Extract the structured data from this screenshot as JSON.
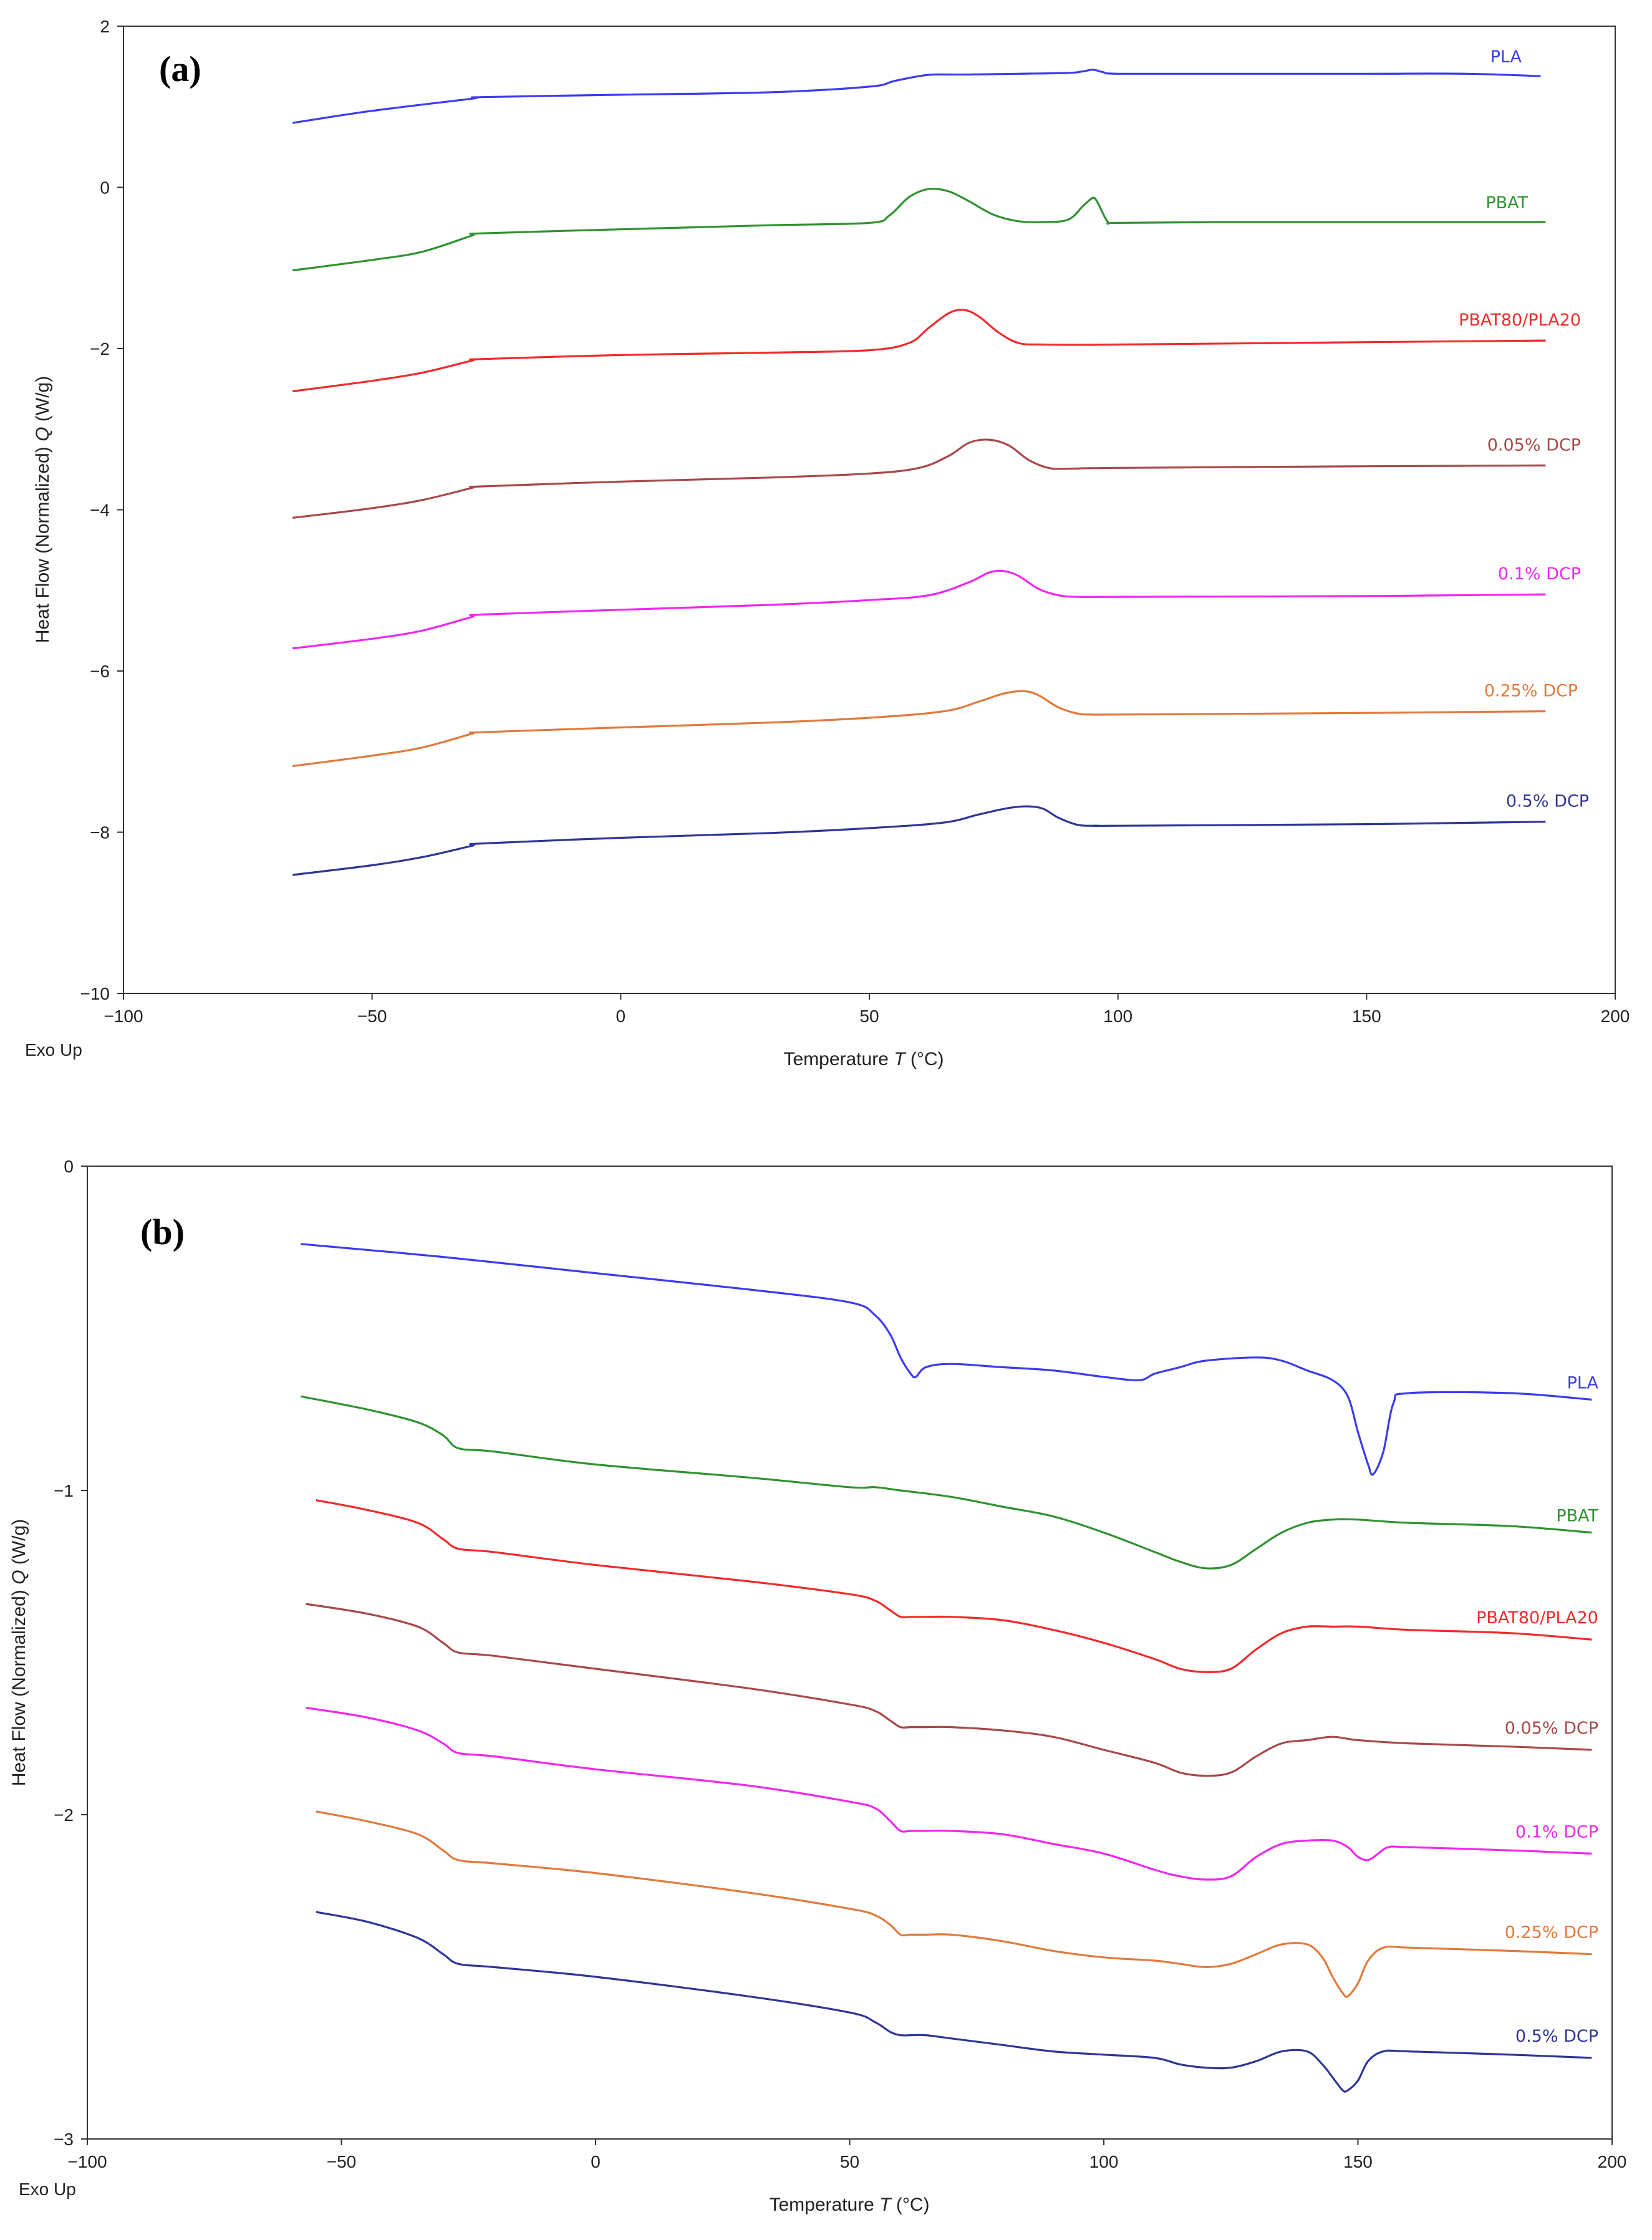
{
  "colors": {
    "PLA": "#3b3bf0",
    "PBAT": "#2f922f",
    "PBAT80/PLA20": "#f02a2a",
    "0.05% DCP": "#a94848",
    "0.1% DCP": "#f026f0",
    "0.25% DCP": "#e07a3c",
    "0.5% DCP": "#2e3597"
  },
  "chart_data": [
    {
      "type": "line",
      "panel_label": "(a)",
      "title": "",
      "xlabel": "Temperature",
      "xlabel_symbol": "T",
      "xlabel_unit": "(°C)",
      "ylabel": "Heat Flow (Normalized)",
      "ylabel_symbol": "Q",
      "ylabel_unit": "(W/g)",
      "corner_note": "Exo Up",
      "xlim": [
        -100,
        200
      ],
      "ylim": [
        -10,
        2
      ],
      "xticks": [
        -100,
        -50,
        0,
        50,
        100,
        150,
        200
      ],
      "xtick_labels": [
        "−100",
        "−50",
        "0",
        "50",
        "100",
        "150",
        "200"
      ],
      "yticks": [
        -10,
        -8,
        -6,
        -4,
        -2,
        0,
        2
      ],
      "ytick_labels": [
        "−10",
        "−8",
        "−6",
        "−4",
        "−2",
        "0",
        "2"
      ],
      "grid": false,
      "series": [
        {
          "name": "PLA",
          "label": "PLA",
          "x": [
            -66,
            -50,
            -30,
            -28,
            0,
            30,
            50,
            55,
            60,
            63,
            70,
            80,
            90,
            93,
            95,
            97,
            100,
            120,
            150,
            170,
            185
          ],
          "y": [
            0.8,
            0.95,
            1.1,
            1.12,
            1.15,
            1.18,
            1.25,
            1.32,
            1.38,
            1.4,
            1.4,
            1.41,
            1.42,
            1.44,
            1.46,
            1.43,
            1.41,
            1.41,
            1.41,
            1.41,
            1.38
          ]
        },
        {
          "name": "PBAT",
          "label": "PBAT",
          "x": [
            -66,
            -50,
            -40,
            -30,
            -28,
            0,
            30,
            50,
            54,
            58,
            62,
            66,
            70,
            75,
            80,
            85,
            90,
            93,
            95,
            96,
            98,
            100,
            120,
            150,
            186
          ],
          "y": [
            -1.03,
            -0.9,
            -0.8,
            -0.6,
            -0.57,
            -0.52,
            -0.47,
            -0.44,
            -0.35,
            -0.12,
            -0.02,
            -0.05,
            -0.17,
            -0.34,
            -0.42,
            -0.43,
            -0.4,
            -0.23,
            -0.13,
            -0.2,
            -0.43,
            -0.44,
            -0.43,
            -0.43,
            -0.43
          ]
        },
        {
          "name": "PBAT80/PLA20",
          "label": "PBAT80/PLA20",
          "x": [
            -66,
            -50,
            -40,
            -30,
            -28,
            0,
            30,
            50,
            58,
            62,
            66,
            69,
            72,
            76,
            80,
            85,
            100,
            150,
            186
          ],
          "y": [
            -2.53,
            -2.4,
            -2.3,
            -2.15,
            -2.13,
            -2.08,
            -2.05,
            -2.02,
            -1.93,
            -1.74,
            -1.56,
            -1.52,
            -1.6,
            -1.8,
            -1.93,
            -1.95,
            -1.95,
            -1.92,
            -1.9
          ]
        },
        {
          "name": "0.05% DCP",
          "label": "0.05% DCP",
          "x": [
            -66,
            -50,
            -40,
            -30,
            -28,
            0,
            30,
            50,
            60,
            66,
            70,
            74,
            78,
            82,
            86,
            90,
            100,
            150,
            186
          ],
          "y": [
            -4.1,
            -3.98,
            -3.88,
            -3.73,
            -3.71,
            -3.65,
            -3.6,
            -3.55,
            -3.48,
            -3.33,
            -3.17,
            -3.13,
            -3.2,
            -3.38,
            -3.48,
            -3.49,
            -3.48,
            -3.46,
            -3.45
          ]
        },
        {
          "name": "0.1% DCP",
          "label": "0.1% DCP",
          "x": [
            -66,
            -50,
            -40,
            -30,
            -28,
            0,
            30,
            50,
            62,
            70,
            74,
            77,
            80,
            84,
            88,
            92,
            100,
            150,
            186
          ],
          "y": [
            -5.72,
            -5.6,
            -5.5,
            -5.33,
            -5.3,
            -5.24,
            -5.18,
            -5.12,
            -5.06,
            -4.9,
            -4.78,
            -4.76,
            -4.82,
            -4.98,
            -5.06,
            -5.08,
            -5.08,
            -5.07,
            -5.05
          ]
        },
        {
          "name": "0.25% DCP",
          "label": "0.25% DCP",
          "x": [
            -66,
            -50,
            -40,
            -30,
            -28,
            0,
            30,
            50,
            65,
            72,
            77,
            81,
            84,
            88,
            92,
            95,
            100,
            150,
            186
          ],
          "y": [
            -7.18,
            -7.05,
            -6.95,
            -6.78,
            -6.76,
            -6.7,
            -6.64,
            -6.58,
            -6.5,
            -6.38,
            -6.28,
            -6.25,
            -6.3,
            -6.45,
            -6.53,
            -6.54,
            -6.54,
            -6.52,
            -6.5
          ]
        },
        {
          "name": "0.5% DCP",
          "label": "0.5% DCP",
          "x": [
            -66,
            -50,
            -40,
            -30,
            -28,
            0,
            30,
            50,
            65,
            72,
            78,
            82,
            85,
            88,
            92,
            96,
            100,
            150,
            186
          ],
          "y": [
            -8.53,
            -8.41,
            -8.31,
            -8.17,
            -8.14,
            -8.07,
            -8.01,
            -7.95,
            -7.88,
            -7.78,
            -7.7,
            -7.68,
            -7.71,
            -7.82,
            -7.91,
            -7.92,
            -7.92,
            -7.9,
            -7.87
          ]
        }
      ]
    },
    {
      "type": "line",
      "panel_label": "(b)",
      "title": "",
      "xlabel": "Temperature",
      "xlabel_symbol": "T",
      "xlabel_unit": "(°C)",
      "ylabel": "Heat Flow (Normalized)",
      "ylabel_symbol": "Q",
      "ylabel_unit": "(W/g)",
      "corner_note": "Exo Up",
      "xlim": [
        -100,
        200
      ],
      "ylim": [
        -3,
        0
      ],
      "xticks": [
        -100,
        -50,
        0,
        50,
        100,
        150,
        200
      ],
      "xtick_labels": [
        "−100",
        "−50",
        "0",
        "50",
        "100",
        "150",
        "200"
      ],
      "yticks": [
        -3,
        -2,
        -1,
        0
      ],
      "ytick_labels": [
        "−3",
        "−2",
        "−1",
        "0"
      ],
      "grid": false,
      "series": [
        {
          "name": "PLA",
          "label": "PLA",
          "x": [
            -58,
            -30,
            0,
            30,
            50,
            55,
            58,
            60,
            62,
            63,
            65,
            70,
            80,
            90,
            100,
            107,
            110,
            115,
            120,
            130,
            135,
            140,
            145,
            148,
            150,
            152,
            153,
            155,
            157,
            160,
            180,
            196
          ],
          "y": [
            -0.24,
            -0.28,
            -0.33,
            -0.38,
            -0.42,
            -0.46,
            -0.52,
            -0.59,
            -0.64,
            -0.65,
            -0.62,
            -0.61,
            -0.62,
            -0.63,
            -0.65,
            -0.66,
            -0.64,
            -0.62,
            -0.6,
            -0.59,
            -0.6,
            -0.63,
            -0.66,
            -0.71,
            -0.82,
            -0.92,
            -0.95,
            -0.88,
            -0.73,
            -0.7,
            -0.7,
            -0.72
          ]
        },
        {
          "name": "PBAT",
          "label": "PBAT",
          "x": [
            -58,
            -45,
            -35,
            -30,
            -27,
            -20,
            0,
            30,
            50,
            55,
            60,
            70,
            80,
            90,
            100,
            110,
            115,
            120,
            125,
            130,
            135,
            140,
            145,
            150,
            160,
            180,
            196
          ],
          "y": [
            -0.71,
            -0.75,
            -0.79,
            -0.83,
            -0.87,
            -0.88,
            -0.92,
            -0.96,
            -0.99,
            -0.99,
            -1.0,
            -1.02,
            -1.05,
            -1.08,
            -1.13,
            -1.19,
            -1.22,
            -1.24,
            -1.23,
            -1.18,
            -1.13,
            -1.1,
            -1.09,
            -1.09,
            -1.1,
            -1.11,
            -1.13
          ]
        },
        {
          "name": "PBAT80/PLA20",
          "label": "PBAT80/PLA20",
          "x": [
            -55,
            -45,
            -35,
            -30,
            -27,
            -20,
            0,
            30,
            50,
            55,
            58,
            60,
            62,
            65,
            70,
            80,
            90,
            100,
            110,
            115,
            120,
            125,
            130,
            135,
            140,
            145,
            150,
            160,
            180,
            196
          ],
          "y": [
            -1.03,
            -1.06,
            -1.1,
            -1.15,
            -1.18,
            -1.19,
            -1.23,
            -1.28,
            -1.32,
            -1.34,
            -1.37,
            -1.39,
            -1.39,
            -1.39,
            -1.39,
            -1.4,
            -1.43,
            -1.47,
            -1.52,
            -1.55,
            -1.56,
            -1.55,
            -1.49,
            -1.44,
            -1.42,
            -1.42,
            -1.42,
            -1.43,
            -1.44,
            -1.46
          ]
        },
        {
          "name": "0.05% DCP",
          "label": "0.05% DCP",
          "x": [
            -57,
            -45,
            -35,
            -30,
            -27,
            -20,
            0,
            30,
            50,
            55,
            58,
            60,
            62,
            65,
            70,
            80,
            90,
            100,
            110,
            115,
            120,
            125,
            130,
            135,
            140,
            145,
            150,
            160,
            180,
            196
          ],
          "y": [
            -1.35,
            -1.38,
            -1.42,
            -1.47,
            -1.5,
            -1.51,
            -1.55,
            -1.61,
            -1.66,
            -1.68,
            -1.71,
            -1.73,
            -1.73,
            -1.73,
            -1.73,
            -1.74,
            -1.76,
            -1.8,
            -1.84,
            -1.87,
            -1.88,
            -1.87,
            -1.82,
            -1.78,
            -1.77,
            -1.76,
            -1.77,
            -1.78,
            -1.79,
            -1.8
          ]
        },
        {
          "name": "0.1% DCP",
          "label": "0.1% DCP",
          "x": [
            -57,
            -45,
            -35,
            -30,
            -27,
            -20,
            0,
            30,
            50,
            55,
            58,
            60,
            62,
            65,
            70,
            80,
            90,
            100,
            110,
            115,
            120,
            125,
            130,
            135,
            140,
            145,
            148,
            150,
            152,
            154,
            156,
            160,
            180,
            196
          ],
          "y": [
            -1.67,
            -1.7,
            -1.74,
            -1.78,
            -1.81,
            -1.82,
            -1.86,
            -1.91,
            -1.96,
            -1.98,
            -2.02,
            -2.05,
            -2.05,
            -2.05,
            -2.05,
            -2.06,
            -2.09,
            -2.12,
            -2.17,
            -2.19,
            -2.2,
            -2.19,
            -2.13,
            -2.09,
            -2.08,
            -2.08,
            -2.1,
            -2.13,
            -2.14,
            -2.12,
            -2.1,
            -2.1,
            -2.11,
            -2.12
          ]
        },
        {
          "name": "0.25% DCP",
          "label": "0.25% DCP",
          "x": [
            -55,
            -45,
            -35,
            -30,
            -27,
            -20,
            0,
            30,
            50,
            55,
            58,
            60,
            62,
            65,
            70,
            80,
            90,
            100,
            110,
            115,
            120,
            125,
            130,
            135,
            140,
            143,
            145,
            147,
            148,
            150,
            152,
            155,
            160,
            180,
            196
          ],
          "y": [
            -1.99,
            -2.02,
            -2.06,
            -2.11,
            -2.14,
            -2.15,
            -2.18,
            -2.24,
            -2.29,
            -2.31,
            -2.34,
            -2.37,
            -2.37,
            -2.37,
            -2.37,
            -2.39,
            -2.42,
            -2.44,
            -2.45,
            -2.46,
            -2.47,
            -2.46,
            -2.43,
            -2.4,
            -2.4,
            -2.44,
            -2.5,
            -2.55,
            -2.56,
            -2.52,
            -2.45,
            -2.41,
            -2.41,
            -2.42,
            -2.43
          ]
        },
        {
          "name": "0.5% DCP",
          "label": "0.5% DCP",
          "x": [
            -55,
            -45,
            -35,
            -30,
            -27,
            -20,
            0,
            30,
            50,
            55,
            58,
            60,
            62,
            65,
            70,
            80,
            90,
            100,
            110,
            115,
            120,
            125,
            130,
            135,
            140,
            143,
            145,
            147,
            148,
            150,
            152,
            155,
            160,
            180,
            196
          ],
          "y": [
            -2.3,
            -2.33,
            -2.38,
            -2.43,
            -2.46,
            -2.47,
            -2.5,
            -2.56,
            -2.61,
            -2.64,
            -2.67,
            -2.68,
            -2.68,
            -2.68,
            -2.69,
            -2.71,
            -2.73,
            -2.74,
            -2.75,
            -2.77,
            -2.78,
            -2.78,
            -2.76,
            -2.73,
            -2.73,
            -2.77,
            -2.81,
            -2.85,
            -2.85,
            -2.82,
            -2.76,
            -2.73,
            -2.73,
            -2.74,
            -2.75
          ]
        }
      ]
    }
  ]
}
